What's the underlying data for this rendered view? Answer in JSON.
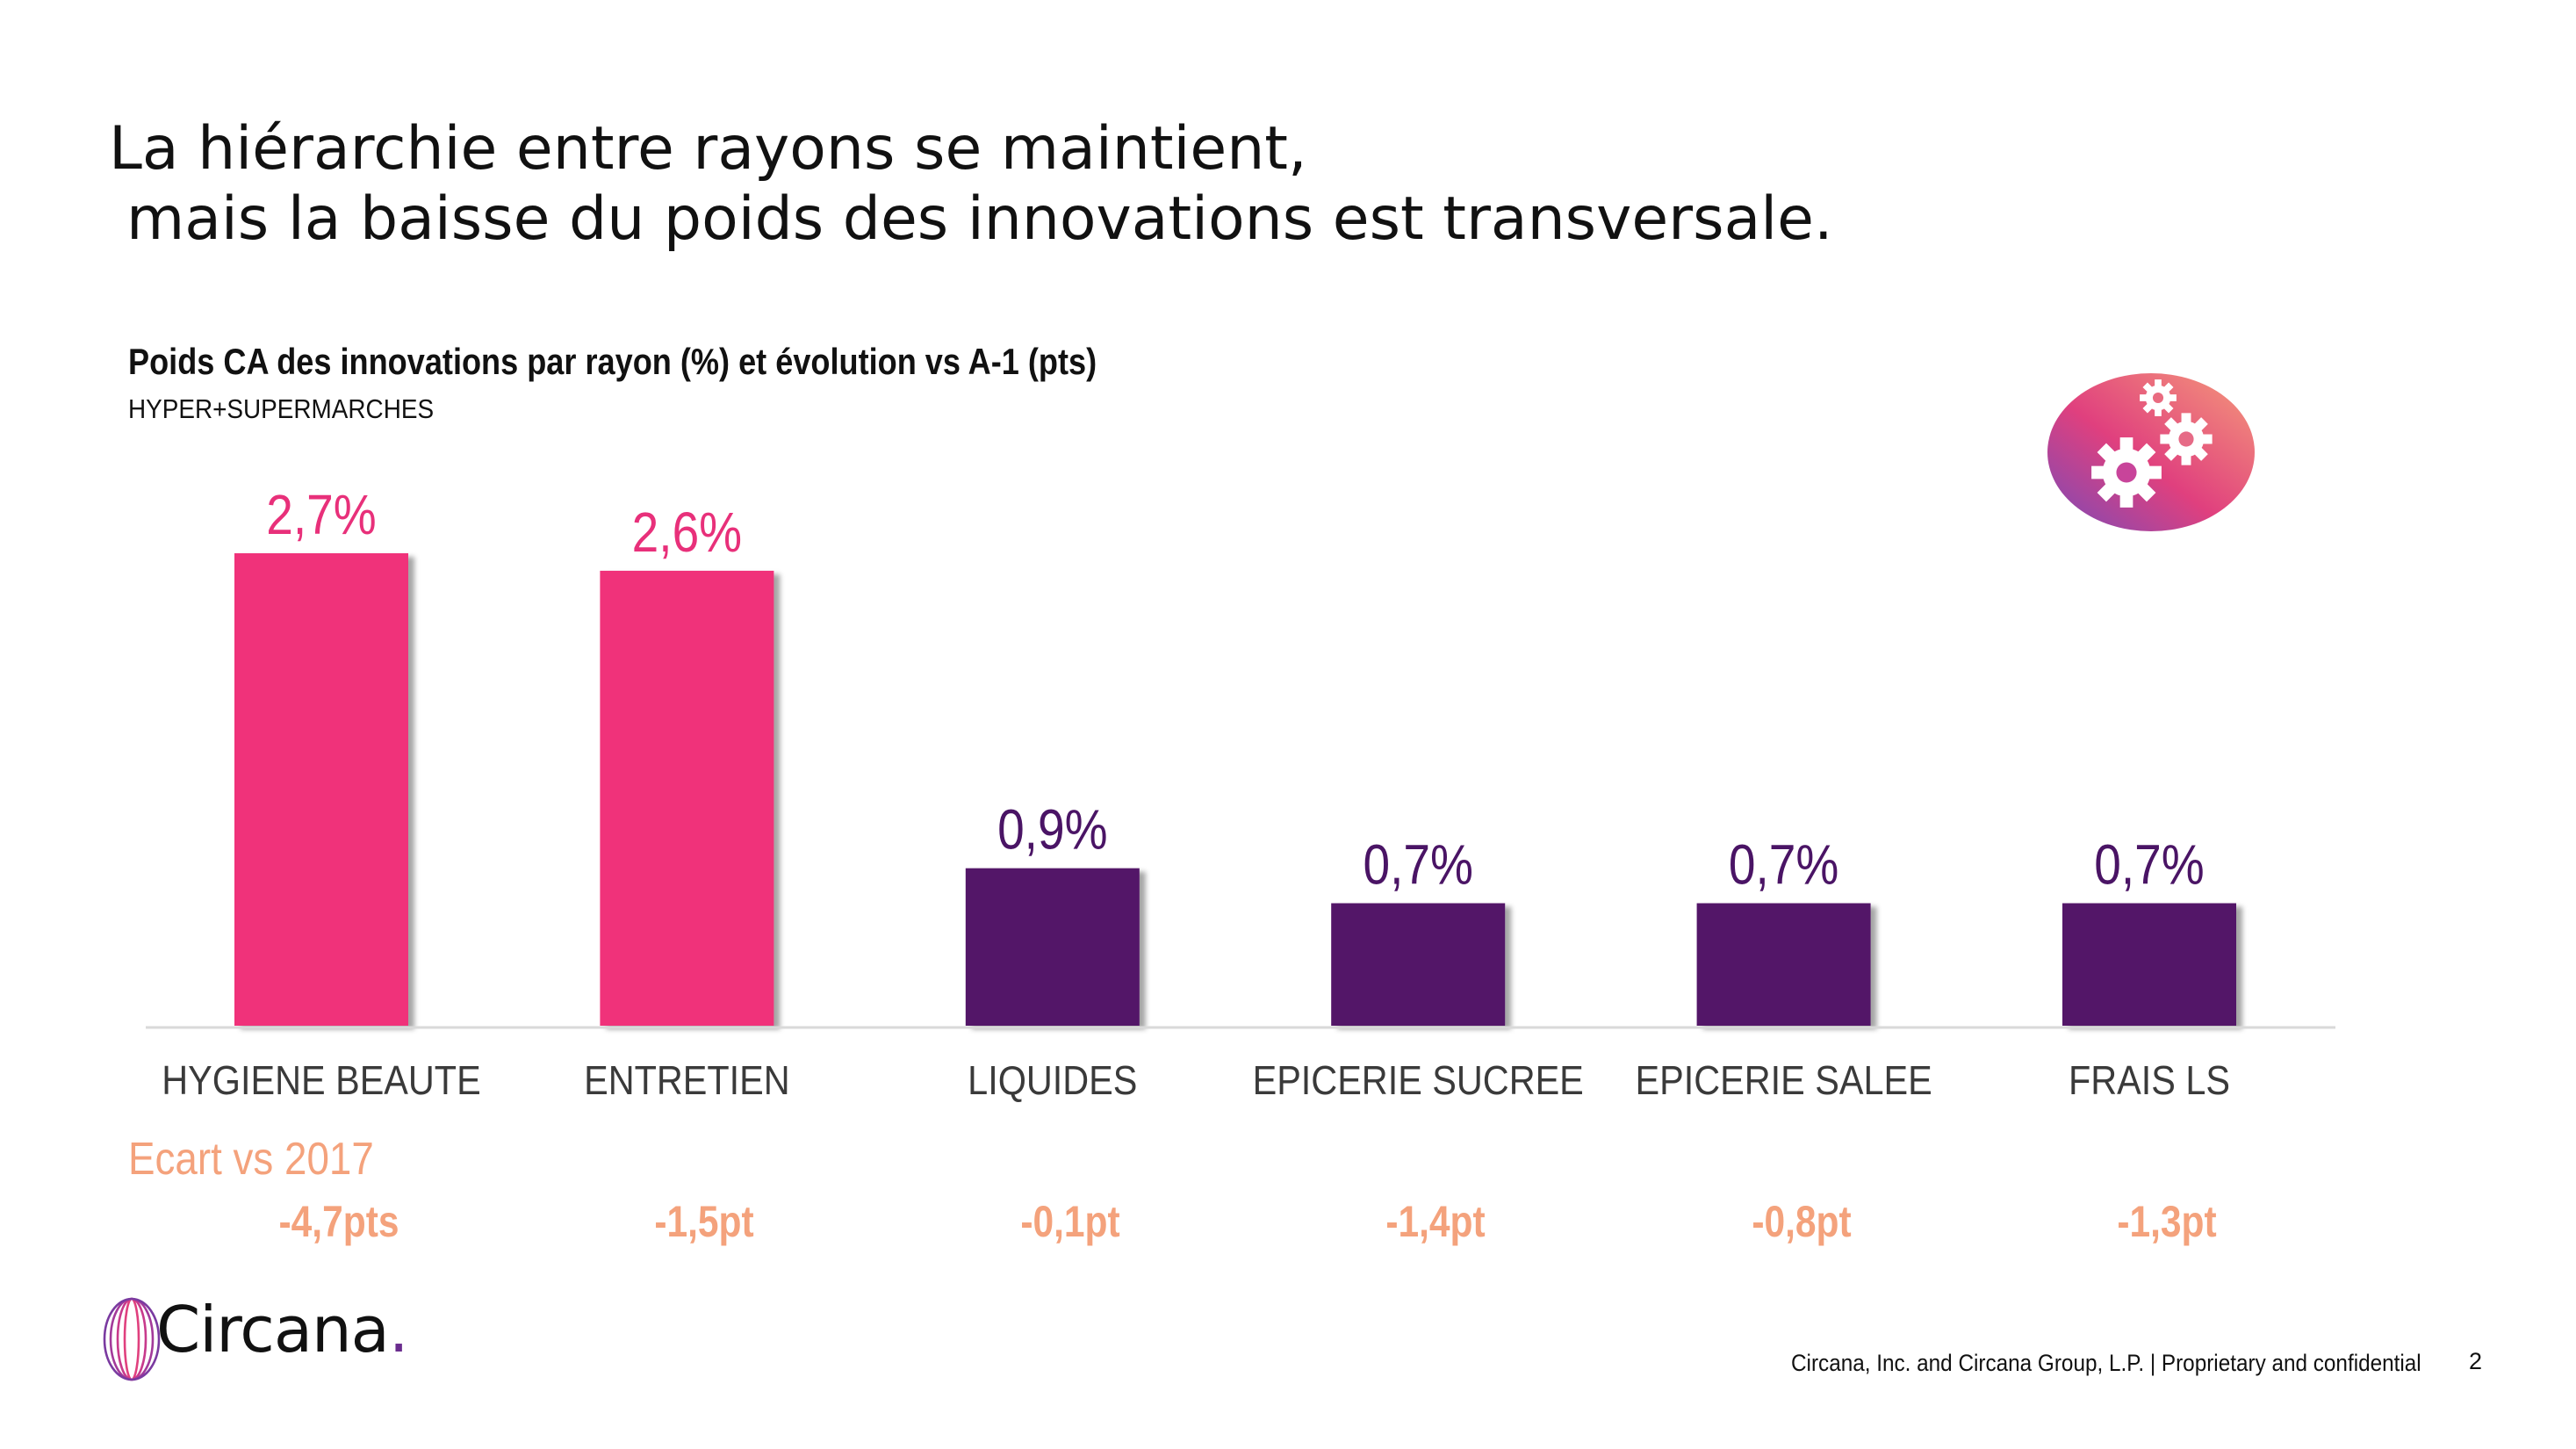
{
  "slide": {
    "title_line1": "La hiérarchie entre rayons se maintient,",
    "title_line2": "mais la baisse du poids des innovations est transversale.",
    "footer": "Circana, Inc. and Circana Group, L.P. |  Proprietary and confidential",
    "page_number": "2",
    "logo_text": "Circana",
    "logo_dot": ".",
    "gear_icon": "gears-icon"
  },
  "chart_data": {
    "type": "bar",
    "title": "Poids CA des innovations par rayon (%) et évolution vs A-1 (pts)",
    "subtitle": "HYPER+SUPERMARCHES",
    "categories": [
      "HYGIENE BEAUTE",
      "ENTRETIEN",
      "LIQUIDES",
      "EPICERIE SUCREE",
      "EPICERIE SALEE",
      "FRAIS LS"
    ],
    "values": [
      2.7,
      2.6,
      0.9,
      0.7,
      0.7,
      0.7
    ],
    "value_labels": [
      "2,7%",
      "2,6%",
      "0,9%",
      "0,7%",
      "0,7%",
      "0,7%"
    ],
    "bar_colors": [
      "#F0307A",
      "#F0307A",
      "#521268",
      "#521268",
      "#521268",
      "#521268"
    ],
    "label_colors": [
      "#E8307A",
      "#E8307A",
      "#4A1465",
      "#4A1465",
      "#4A1465",
      "#4A1465"
    ],
    "ylim": [
      0,
      2.7
    ],
    "grid": false,
    "legend": "none",
    "ecart_label": "Ecart vs 2017",
    "deltas": [
      "-4,7pts",
      "-1,5pt",
      "-0,1pt",
      "-1,4pt",
      "-0,8pt",
      "-1,3pt"
    ],
    "delta_color": "#F4A27C"
  }
}
